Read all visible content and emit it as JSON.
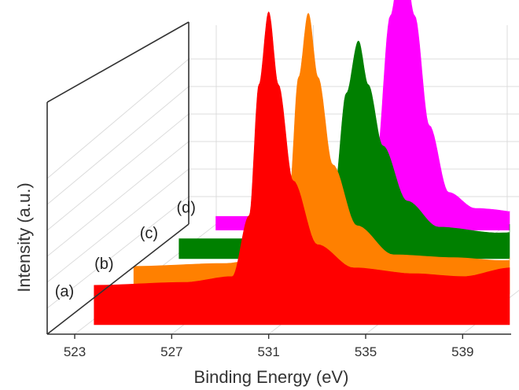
{
  "chart_data": {
    "type": "area",
    "style": "3d-waterfall",
    "xlabel": "Binding Energy (eV)",
    "ylabel": "Intensity (a.u.)",
    "x_ticks": [
      "523",
      "527",
      "531",
      "535",
      "539"
    ],
    "x_tick_values": [
      523,
      527,
      531,
      535,
      539
    ],
    "xlim": [
      523,
      541
    ],
    "grid": true,
    "series": [
      {
        "name": "(a)",
        "color": "#ff0000",
        "x_start": 523.8,
        "x_end": 541,
        "baseline": 0.06,
        "peak_position": 531.0,
        "peak_intensity": 1.0,
        "points": [
          [
            523.8,
            0.06
          ],
          [
            527.5,
            0.07
          ],
          [
            529.5,
            0.09
          ],
          [
            530.2,
            0.3
          ],
          [
            530.6,
            0.75
          ],
          [
            531.0,
            1.0
          ],
          [
            531.4,
            0.75
          ],
          [
            532.0,
            0.42
          ],
          [
            533.0,
            0.2
          ],
          [
            534.5,
            0.12
          ],
          [
            537.0,
            0.1
          ],
          [
            539.0,
            0.09
          ],
          [
            541.0,
            0.12
          ]
        ]
      },
      {
        "name": "(b)",
        "color": "#ff8000",
        "x_start": 523.8,
        "x_end": 541,
        "baseline": 0.03,
        "peak_position": 531.0,
        "peak_intensity": 0.9,
        "points": [
          [
            523.8,
            0.03
          ],
          [
            527.5,
            0.04
          ],
          [
            529.5,
            0.06
          ],
          [
            530.2,
            0.26
          ],
          [
            530.6,
            0.68
          ],
          [
            531.0,
            0.9
          ],
          [
            531.4,
            0.68
          ],
          [
            532.0,
            0.38
          ],
          [
            533.0,
            0.17
          ],
          [
            534.5,
            0.07
          ],
          [
            537.0,
            0.06
          ],
          [
            539.0,
            0.05
          ],
          [
            541.0,
            0.06
          ]
        ]
      },
      {
        "name": "(c)",
        "color": "#008000",
        "x_start": 523.8,
        "x_end": 541,
        "baseline": 0.02,
        "peak_position": 531.2,
        "peak_intensity": 0.7,
        "points": [
          [
            523.8,
            0.02
          ],
          [
            527.5,
            0.02
          ],
          [
            529.5,
            0.04
          ],
          [
            530.2,
            0.18
          ],
          [
            530.7,
            0.52
          ],
          [
            531.2,
            0.7
          ],
          [
            531.6,
            0.55
          ],
          [
            532.2,
            0.34
          ],
          [
            533.2,
            0.15
          ],
          [
            534.5,
            0.06
          ],
          [
            537.0,
            0.04
          ],
          [
            539.0,
            0.05
          ],
          [
            541.0,
            0.07
          ]
        ]
      },
      {
        "name": "(d)",
        "color": "#ff00ff",
        "x_start": 523.8,
        "x_end": 541,
        "baseline": 0.01,
        "peak_position": 531.5,
        "peak_intensity": 1.02,
        "points": [
          [
            523.8,
            0.01
          ],
          [
            527.5,
            0.01
          ],
          [
            529.5,
            0.02
          ],
          [
            530.4,
            0.2
          ],
          [
            531.0,
            0.76
          ],
          [
            531.5,
            1.02
          ],
          [
            532.0,
            0.76
          ],
          [
            532.6,
            0.35
          ],
          [
            533.4,
            0.1
          ],
          [
            534.5,
            0.04
          ],
          [
            537.0,
            0.02
          ],
          [
            539.0,
            0.02
          ],
          [
            541.0,
            0.03
          ]
        ]
      }
    ]
  }
}
